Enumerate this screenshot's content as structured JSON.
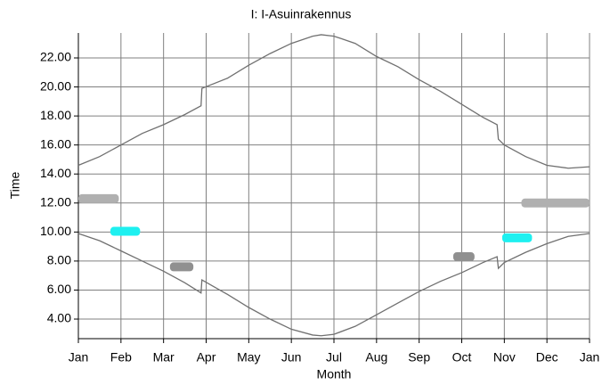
{
  "chart_data": {
    "type": "line",
    "title": "I: I-Asuinrakennus",
    "x_label": "Month",
    "y_label": "Time",
    "xlim": [
      0,
      12
    ],
    "xticks": [
      {
        "value": 0,
        "label": "Jan"
      },
      {
        "value": 1,
        "label": "Feb"
      },
      {
        "value": 2,
        "label": "Mar"
      },
      {
        "value": 3,
        "label": "Apr"
      },
      {
        "value": 4,
        "label": "May"
      },
      {
        "value": 5,
        "label": "Jun"
      },
      {
        "value": 6,
        "label": "Jul"
      },
      {
        "value": 7,
        "label": "Aug"
      },
      {
        "value": 8,
        "label": "Sep"
      },
      {
        "value": 9,
        "label": "Oct"
      },
      {
        "value": 10,
        "label": "Nov"
      },
      {
        "value": 11,
        "label": "Dec"
      },
      {
        "value": 12,
        "label": "Jan"
      }
    ],
    "ylim": [
      2.65,
      23.72
    ],
    "yticks": [
      {
        "value": 4,
        "label": "4.00"
      },
      {
        "value": 6,
        "label": "6.00"
      },
      {
        "value": 8,
        "label": "8.00"
      },
      {
        "value": 10,
        "label": "10.00"
      },
      {
        "value": 12,
        "label": "12.00"
      },
      {
        "value": 14,
        "label": "14.00"
      },
      {
        "value": 16,
        "label": "16.00"
      },
      {
        "value": 18,
        "label": "18.00"
      },
      {
        "value": 20,
        "label": "20.00"
      },
      {
        "value": 22,
        "label": "22.00"
      }
    ],
    "grid": true,
    "series": [
      {
        "color": "#707070",
        "x": [
          0,
          0.5,
          1,
          1.5,
          2,
          2.5,
          2.88,
          2.9,
          3.5,
          4,
          4.5,
          5,
          5.5,
          5.7,
          6,
          6.5,
          7,
          7.5,
          8,
          8.5,
          9,
          9.5,
          9.83,
          9.86,
          10,
          10.5,
          11,
          11.5,
          12
        ],
        "values": [
          14.6,
          15.2,
          16.0,
          16.8,
          17.4,
          18.1,
          18.7,
          19.9,
          20.6,
          21.5,
          22.3,
          23.0,
          23.5,
          23.6,
          23.5,
          23.0,
          22.1,
          21.4,
          20.5,
          19.7,
          18.8,
          17.9,
          17.4,
          16.4,
          16.0,
          15.2,
          14.6,
          14.4,
          14.5
        ]
      },
      {
        "color": "#707070",
        "x": [
          0,
          0.5,
          1,
          1.5,
          2,
          2.5,
          2.88,
          2.9,
          3.5,
          4,
          4.5,
          5,
          5.5,
          5.7,
          6,
          6.5,
          7,
          7.5,
          8,
          8.5,
          9,
          9.5,
          9.83,
          9.86,
          10,
          10.5,
          11,
          11.5,
          12
        ],
        "values": [
          9.9,
          9.4,
          8.7,
          8.0,
          7.3,
          6.5,
          5.8,
          6.7,
          5.7,
          4.8,
          4.0,
          3.3,
          2.9,
          2.85,
          2.95,
          3.5,
          4.3,
          5.1,
          5.9,
          6.6,
          7.2,
          7.9,
          8.3,
          7.5,
          7.9,
          8.6,
          9.2,
          9.7,
          9.9
        ]
      }
    ],
    "shadings": [
      {
        "x0": 0.0,
        "x1": 0.95,
        "y": 12.3,
        "color": "#b0b0b0"
      },
      {
        "x0": 0.75,
        "x1": 1.45,
        "y": 10.05,
        "color": "#1ef0f0"
      },
      {
        "x0": 2.15,
        "x1": 2.7,
        "y": 7.6,
        "color": "#909090"
      },
      {
        "x0": 8.8,
        "x1": 9.3,
        "y": 8.3,
        "color": "#909090"
      },
      {
        "x0": 9.95,
        "x1": 10.65,
        "y": 9.6,
        "color": "#1ef0f0"
      },
      {
        "x0": 10.4,
        "x1": 12.0,
        "y": 12.0,
        "color": "#b0b0b0"
      }
    ]
  }
}
